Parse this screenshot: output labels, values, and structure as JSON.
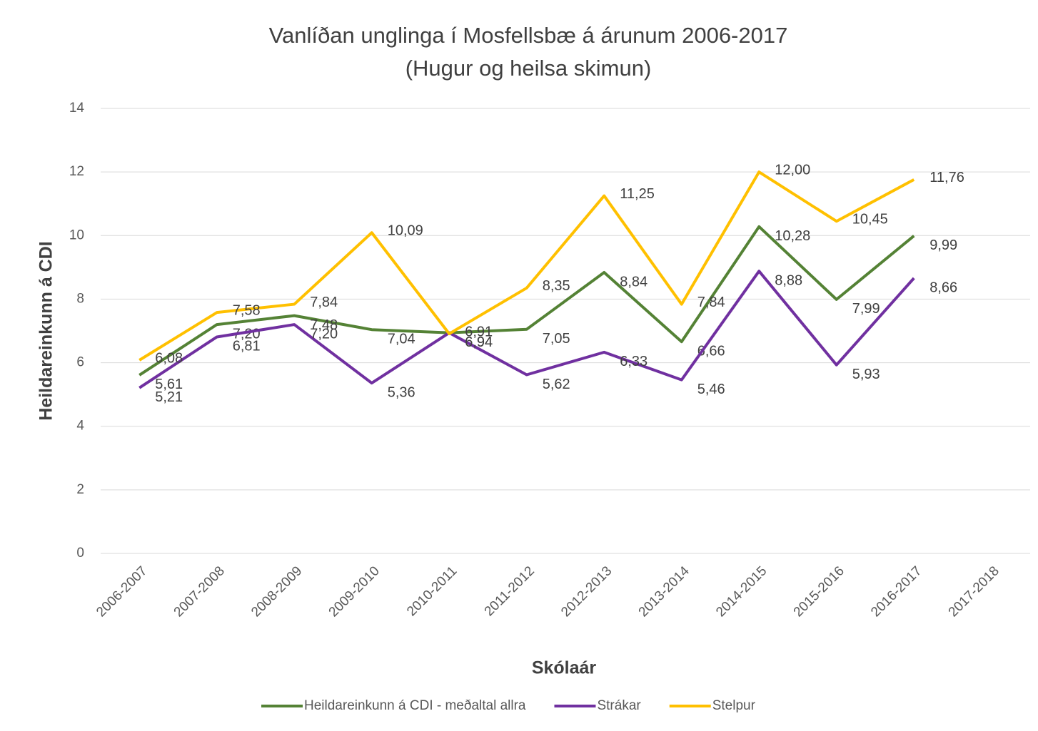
{
  "chart_data": {
    "type": "line",
    "title": "Vanlíðan unglinga í Mosfellsbæ á árunum 2006-2017",
    "subtitle": "(Hugur og heilsa skimun)",
    "y_label": "Heildareinkunn á CDI",
    "x_label": "Skólaár",
    "categories": [
      "2006-2007",
      "2007-2008",
      "2008-2009",
      "2009-2010",
      "2010-2011",
      "2011-2012",
      "2012-2013",
      "2013-2014",
      "2014-2015",
      "2015-2016",
      "2016-2017",
      "2017-2018"
    ],
    "series": [
      {
        "name": "Heildareinkunn á CDI - meðaltal allra",
        "color": "#548235",
        "values": [
          5.61,
          7.2,
          7.48,
          7.04,
          6.94,
          7.05,
          8.84,
          6.66,
          10.28,
          7.99,
          9.99,
          null
        ],
        "value_labels": [
          "5,61",
          "7,20",
          "7,48",
          "7,04",
          "6,94",
          "7,05",
          "8,84",
          "6,66",
          "10,28",
          "7,99",
          "9,99",
          null
        ]
      },
      {
        "name": "Strákar",
        "color": "#7030a0",
        "values": [
          5.21,
          6.81,
          7.2,
          5.36,
          6.94,
          5.62,
          6.33,
          5.46,
          8.88,
          5.93,
          8.66,
          null
        ],
        "value_labels": [
          "5,21",
          "6,81",
          "7,20",
          "5,36",
          "6,94",
          "5,62",
          "6,33",
          "5,46",
          "8,88",
          "5,93",
          "8,66",
          null
        ]
      },
      {
        "name": "Stelpur",
        "color": "#ffc000",
        "values": [
          6.08,
          7.58,
          7.84,
          10.09,
          6.91,
          8.35,
          11.25,
          7.84,
          12.0,
          10.45,
          11.76,
          null
        ],
        "value_labels": [
          "6,08",
          "7,58",
          "7,84",
          "10,09",
          "6,91",
          "8,35",
          "11,25",
          "7,84",
          "12,00",
          "10,45",
          "11,76",
          null
        ]
      }
    ],
    "ylim": [
      0,
      14
    ],
    "yticks": [
      0,
      2,
      4,
      6,
      8,
      10,
      12,
      14
    ],
    "grid": true,
    "legend": "bottom"
  }
}
